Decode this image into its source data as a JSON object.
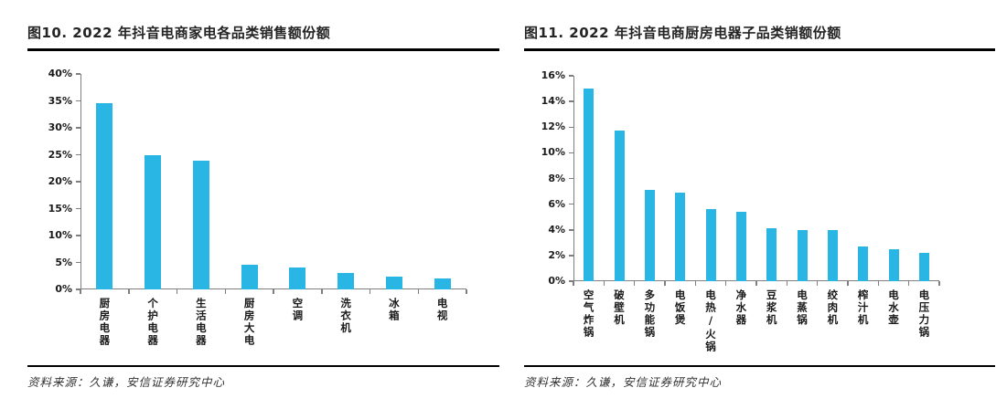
{
  "page": {
    "background": "#ffffff",
    "rule_color": "#000000",
    "axis_color": "#7f7f7f",
    "text_color": "#242424"
  },
  "figures": [
    {
      "title": "图10. 2022 年抖音电商家电各品类销售额份额",
      "source": "资料来源：久谦，安信证券研究中心",
      "chart_data": {
        "type": "bar",
        "title": "图10. 2022 年抖音电商家电各品类销售额份额",
        "categories": [
          "厨房电器",
          "个护电器",
          "生活电器",
          "厨房大电",
          "空调",
          "洗衣机",
          "冰箱",
          "电视"
        ],
        "values": [
          34.5,
          24.9,
          23.9,
          4.6,
          4.0,
          3.1,
          2.3,
          2.0
        ],
        "unit": "%",
        "xlabel": "",
        "ylabel": "",
        "ylim": [
          0,
          40
        ],
        "ytick_labels": [
          "0%",
          "5%",
          "10%",
          "15%",
          "20%",
          "25%",
          "30%",
          "35%",
          "40%"
        ],
        "bar_color": "#29B6E4",
        "grid": false,
        "legend": false,
        "category_label_orientation": "vertical"
      }
    },
    {
      "title": "图11. 2022 年抖音电商厨房电器子品类销额份额",
      "source": "资料来源：久谦，安信证券研究中心",
      "chart_data": {
        "type": "bar",
        "title": "图11. 2022 年抖音电商厨房电器子品类销额份额",
        "categories": [
          "空气炸锅",
          "破壁机",
          "多功能锅",
          "电饭煲",
          "电热/火锅",
          "净水器",
          "豆浆机",
          "电蒸锅",
          "绞肉机",
          "榨汁机",
          "电水壶",
          "电压力锅"
        ],
        "values": [
          15.0,
          11.7,
          7.1,
          6.9,
          5.6,
          5.4,
          4.1,
          4.0,
          4.0,
          2.7,
          2.5,
          2.2
        ],
        "unit": "%",
        "xlabel": "",
        "ylabel": "",
        "ylim": [
          0,
          16
        ],
        "ytick_labels": [
          "0%",
          "2%",
          "4%",
          "6%",
          "8%",
          "10%",
          "12%",
          "14%",
          "16%"
        ],
        "bar_color": "#29B6E4",
        "grid": false,
        "legend": false,
        "category_label_orientation": "vertical"
      }
    }
  ]
}
